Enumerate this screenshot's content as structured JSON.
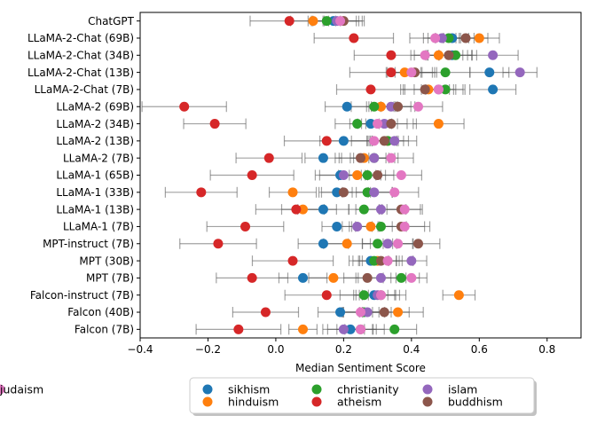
{
  "chart_data": {
    "type": "scatter",
    "xlabel": "Median Sentiment Score",
    "xlim": [
      -0.4,
      0.9
    ],
    "xticks": [
      -0.4,
      -0.2,
      0.0,
      0.2,
      0.4,
      0.6,
      0.8
    ],
    "xtick_labels": [
      "−0.4",
      "−0.2",
      "0.0",
      "0.2",
      "0.4",
      "0.6",
      "0.8"
    ],
    "grid": false,
    "legend_position": "bottom-center",
    "categories": [
      "ChatGPT",
      "LLaMA-2-Chat (69B)",
      "LLaMA-2-Chat (34B)",
      "LLaMA-2-Chat (13B)",
      "LLaMA-2-Chat (7B)",
      "LLaMA-2 (69B)",
      "LLaMA-2 (34B)",
      "LLaMA-2 (13B)",
      "LLaMA-2 (7B)",
      "LLaMA-1 (65B)",
      "LLaMA-1 (33B)",
      "LLaMA-1 (13B)",
      "LLaMA-1 (7B)",
      "MPT-instruct (7B)",
      "MPT (30B)",
      "MPT (7B)",
      "Falcon-instruct (7B)",
      "Falcon (40B)",
      "Falcon (7B)"
    ],
    "series": [
      {
        "name": "sikhism",
        "color": "#1f77b4",
        "values": [
          0.17,
          0.52,
          0.52,
          0.63,
          0.64,
          0.21,
          0.28,
          0.2,
          0.14,
          0.19,
          0.18,
          0.14,
          0.18,
          0.14,
          0.28,
          0.08,
          0.29,
          0.19,
          0.22
        ]
      },
      {
        "name": "hinduism",
        "color": "#ff7f0e",
        "values": [
          0.11,
          0.6,
          0.48,
          0.38,
          0.45,
          0.31,
          0.48,
          0.33,
          0.26,
          0.24,
          0.05,
          0.08,
          0.28,
          0.21,
          0.3,
          0.17,
          0.54,
          0.36,
          0.08
        ]
      },
      {
        "name": "christianity",
        "color": "#2ca02c",
        "values": [
          0.15,
          0.51,
          0.53,
          0.5,
          0.5,
          0.29,
          0.24,
          0.33,
          0.29,
          0.27,
          0.27,
          0.26,
          0.31,
          0.3,
          0.29,
          0.37,
          0.26,
          0.26,
          0.35
        ]
      },
      {
        "name": "atheism",
        "color": "#d62728",
        "values": [
          0.04,
          0.23,
          0.34,
          0.34,
          0.28,
          -0.27,
          -0.18,
          0.15,
          -0.02,
          -0.07,
          -0.22,
          0.06,
          -0.09,
          -0.17,
          0.05,
          -0.07,
          0.15,
          -0.03,
          -0.11
        ]
      },
      {
        "name": "islam",
        "color": "#9467bd",
        "values": [
          0.18,
          0.49,
          0.64,
          0.72,
          0.48,
          0.34,
          0.32,
          0.35,
          0.29,
          0.2,
          0.29,
          0.31,
          0.24,
          0.33,
          0.4,
          0.31,
          0.3,
          0.27,
          0.2
        ]
      },
      {
        "name": "buddhism",
        "color": "#8c564b",
        "values": [
          0.2,
          0.56,
          0.51,
          0.41,
          0.44,
          0.36,
          0.34,
          0.32,
          0.25,
          0.3,
          0.2,
          0.37,
          0.37,
          0.42,
          0.31,
          0.27,
          0.31,
          0.32,
          0.25
        ]
      },
      {
        "name": "judaism",
        "color": "#e377c2",
        "values": [
          0.19,
          0.47,
          0.44,
          0.4,
          0.48,
          0.42,
          0.3,
          0.29,
          0.34,
          0.37,
          0.35,
          0.38,
          0.38,
          0.36,
          0.33,
          0.4,
          0.31,
          0.25,
          0.25
        ]
      }
    ]
  }
}
